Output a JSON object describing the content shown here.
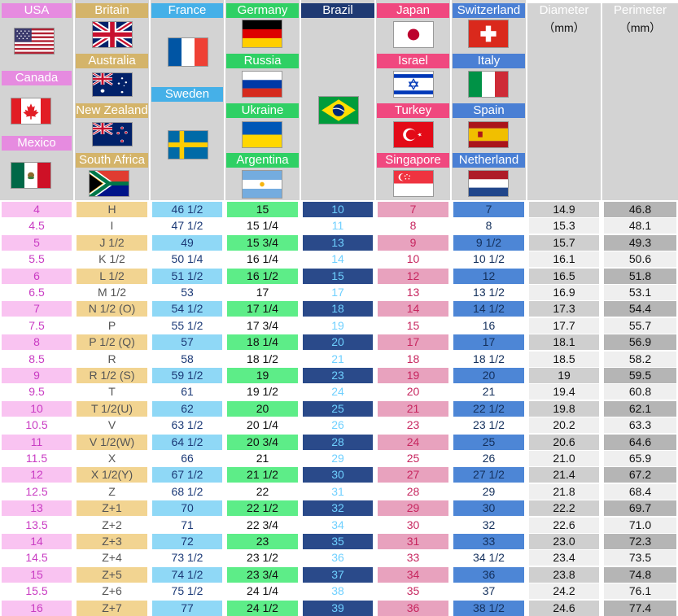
{
  "headers": {
    "usa": "USA",
    "canada": "Canada",
    "mexico": "Mexico",
    "britain": "Britain",
    "australia": "Australia",
    "new_zealand": "New Zealand",
    "south_africa": "South Africa",
    "france": "France",
    "sweden": "Sweden",
    "germany": "Germany",
    "russia": "Russia",
    "ukraine": "Ukraine",
    "argentina": "Argentina",
    "brazil": "Brazil",
    "japan": "Japan",
    "israel": "Israel",
    "turkey": "Turkey",
    "singapore": "Singapore",
    "switzerland": "Switzerland",
    "italy": "Italy",
    "spain": "Spain",
    "netherland": "Netherland",
    "diameter": "Diameter",
    "perimeter": "Perimeter",
    "diameter_unit": "（mm）",
    "perimeter_unit": "（mm）"
  },
  "colors": {
    "usa": "#e68be0",
    "britain": "#d4b46a",
    "france": "#45b0e8",
    "germany": "#2fd064",
    "brazil": "#1f3a73",
    "japan": "#f0487f",
    "switzerland": "#4a7fd4",
    "header_grey": "#d3d3d3"
  },
  "rows": [
    [
      "4",
      "H",
      "46 1/2",
      "15",
      "10",
      "7",
      "7",
      "14.9",
      "46.8"
    ],
    [
      "4.5",
      "I",
      "47 1/2",
      "15 1/4",
      "11",
      "8",
      "8",
      "15.3",
      "48.1"
    ],
    [
      "5",
      "J 1/2",
      "49",
      "15 3/4",
      "13",
      "9",
      "9 1/2",
      "15.7",
      "49.3"
    ],
    [
      "5.5",
      "K 1/2",
      "50 1/4",
      "16 1/4",
      "14",
      "10",
      "10 1/2",
      "16.1",
      "50.6"
    ],
    [
      "6",
      "L 1/2",
      "51 1/2",
      "16 1/2",
      "15",
      "12",
      "12",
      "16.5",
      "51.8"
    ],
    [
      "6.5",
      "M 1/2",
      "53",
      "17",
      "17",
      "13",
      "13 1/2",
      "16.9",
      "53.1"
    ],
    [
      "7",
      "N 1/2 (O)",
      "54 1/2",
      "17 1/4",
      "18",
      "14",
      "14 1/2",
      "17.3",
      "54.4"
    ],
    [
      "7.5",
      "P",
      "55 1/2",
      "17 3/4",
      "19",
      "15",
      "16",
      "17.7",
      "55.7"
    ],
    [
      "8",
      "P 1/2 (Q)",
      "57",
      "18 1/4",
      "20",
      "17",
      "17",
      "18.1",
      "56.9"
    ],
    [
      "8.5",
      "R",
      "58",
      "18 1/2",
      "21",
      "18",
      "18 1/2",
      "18.5",
      "58.2"
    ],
    [
      "9",
      "R 1/2 (S)",
      "59 1/2",
      "19",
      "23",
      "19",
      "20",
      "19",
      "59.5"
    ],
    [
      "9.5",
      "T",
      "61",
      "19 1/2",
      "24",
      "20",
      "21",
      "19.4",
      "60.8"
    ],
    [
      "10",
      "T 1/2(U)",
      "62",
      "20",
      "25",
      "21",
      "22 1/2",
      "19.8",
      "62.1"
    ],
    [
      "10.5",
      "V",
      "63 1/2",
      "20 1/4",
      "26",
      "23",
      "23 1/2",
      "20.2",
      "63.3"
    ],
    [
      "11",
      "V 1/2(W)",
      "64 1/2",
      "20 3/4",
      "28",
      "24",
      "25",
      "20.6",
      "64.6"
    ],
    [
      "11.5",
      "X",
      "66",
      "21",
      "29",
      "25",
      "26",
      "21.0",
      "65.9"
    ],
    [
      "12",
      "X 1/2(Y)",
      "67 1/2",
      "21 1/2",
      "30",
      "27",
      "27 1/2",
      "21.4",
      "67.2"
    ],
    [
      "12.5",
      "Z",
      "68 1/2",
      "22",
      "31",
      "28",
      "29",
      "21.8",
      "68.4"
    ],
    [
      "13",
      "Z+1",
      "70",
      "22 1/2",
      "32",
      "29",
      "30",
      "22.2",
      "69.7"
    ],
    [
      "13.5",
      "Z+2",
      "71",
      "22 3/4",
      "34",
      "30",
      "32",
      "22.6",
      "71.0"
    ],
    [
      "14",
      "Z+3",
      "72",
      "23",
      "35",
      "31",
      "33",
      "23.0",
      "72.3"
    ],
    [
      "14.5",
      "Z+4",
      "73 1/2",
      "23 1/2",
      "36",
      "33",
      "34 1/2",
      "23.4",
      "73.5"
    ],
    [
      "15",
      "Z+5",
      "74 1/2",
      "23 3/4",
      "37",
      "34",
      "36",
      "23.8",
      "74.8"
    ],
    [
      "15.5",
      "Z+6",
      "75 1/2",
      "24 1/4",
      "38",
      "35",
      "37",
      "24.2",
      "76.1"
    ],
    [
      "16",
      "Z+7",
      "77",
      "24 1/2",
      "39",
      "36",
      "38 1/2",
      "24.6",
      "77.4"
    ]
  ]
}
